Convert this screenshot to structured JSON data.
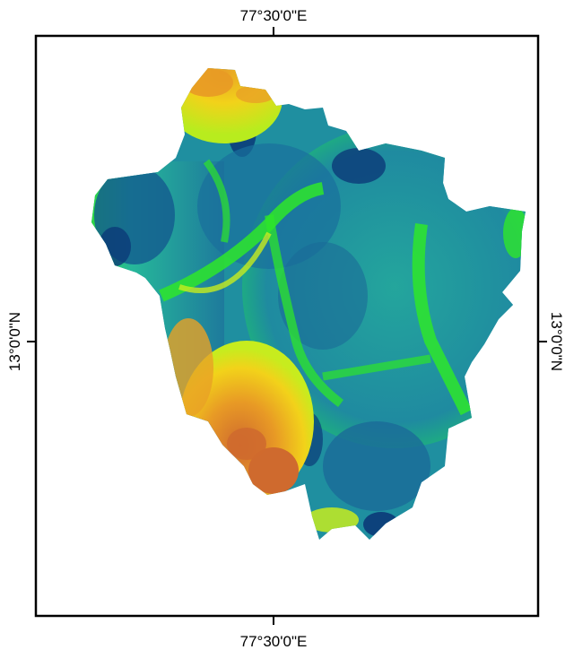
{
  "map": {
    "graticule": {
      "top": "77°30'0\"E",
      "bottom": "77°30'0\"E",
      "left": "13°0'0\"N",
      "right": "13°0'0\"N"
    },
    "colors": {
      "frame": "#000000",
      "background": "#ffffff",
      "ramp": [
        "#0b3a78",
        "#1e6f9a",
        "#2ba39a",
        "#1fc85a",
        "#2ee62a",
        "#c7ec1e",
        "#f2d21a",
        "#e89a25",
        "#cf6a2e"
      ]
    }
  }
}
